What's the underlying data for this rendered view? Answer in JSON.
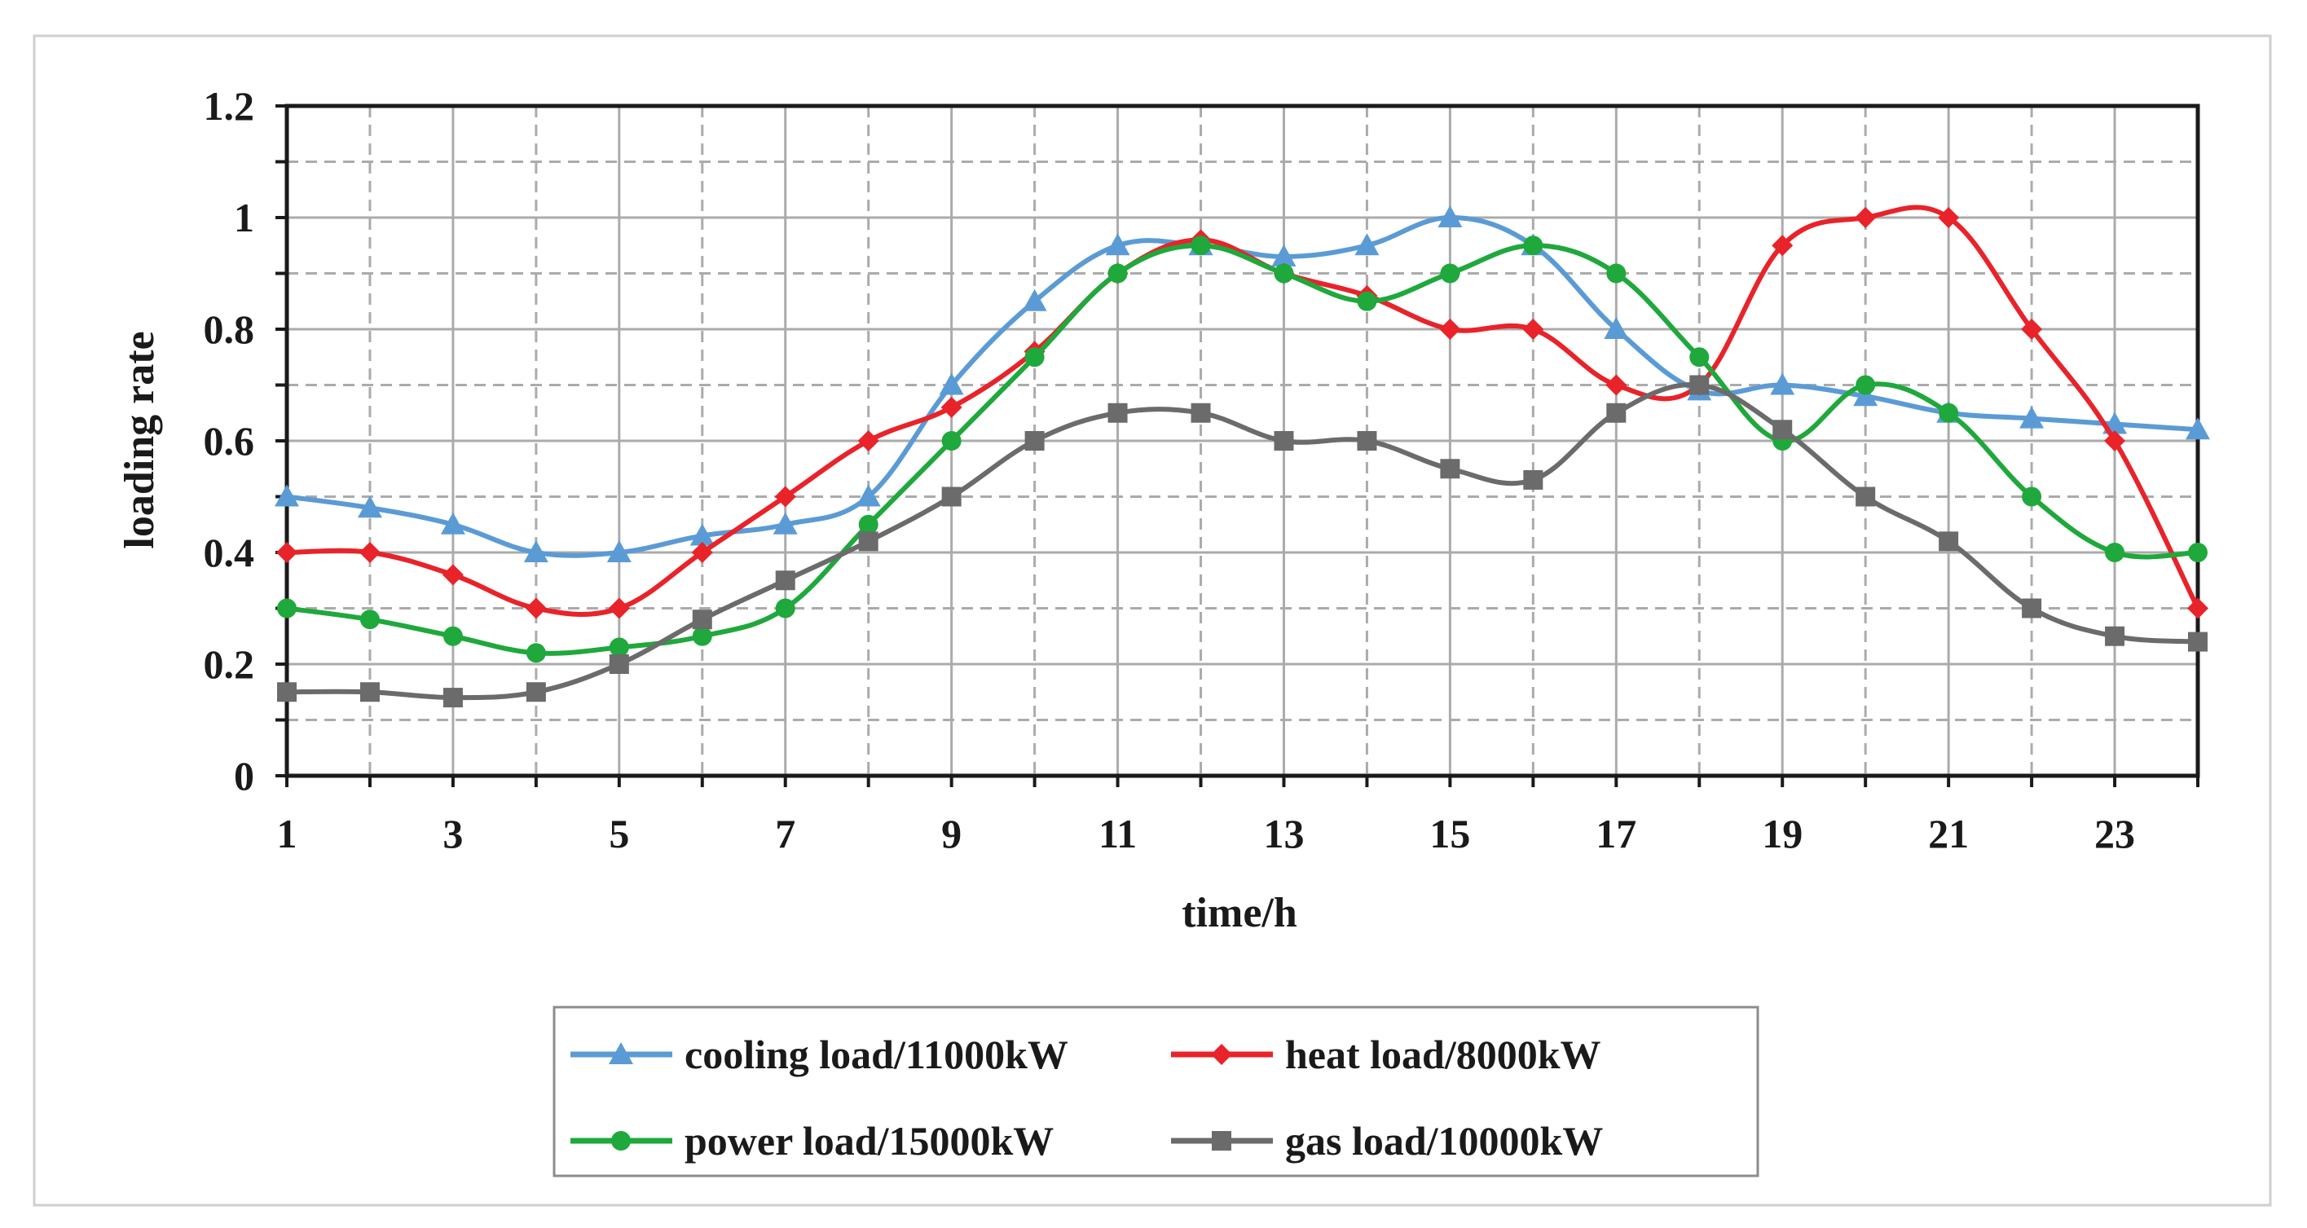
{
  "chart_data": {
    "type": "line",
    "title": "",
    "xlabel": "time/h",
    "ylabel": "loading rate",
    "x": [
      1,
      2,
      3,
      4,
      5,
      6,
      7,
      8,
      9,
      10,
      11,
      12,
      13,
      14,
      15,
      16,
      17,
      18,
      19,
      20,
      21,
      22,
      23,
      24
    ],
    "xlim": [
      1,
      24
    ],
    "ylim": [
      0,
      1.2
    ],
    "x_tick_labels": [
      "1",
      "3",
      "5",
      "7",
      "9",
      "11",
      "13",
      "15",
      "17",
      "19",
      "21",
      "23"
    ],
    "x_tick_values": [
      1,
      3,
      5,
      7,
      9,
      11,
      13,
      15,
      17,
      19,
      21,
      23
    ],
    "y_tick_labels": [
      "0",
      "0.2",
      "0.4",
      "0.6",
      "0.8",
      "1",
      "1.2"
    ],
    "y_tick_values": [
      0,
      0.2,
      0.4,
      0.6,
      0.8,
      1.0,
      1.2
    ],
    "grid": true,
    "legend_position": "bottom-center",
    "series": [
      {
        "name": "cooling load/11000kW",
        "color": "#5b9bd5",
        "marker": "triangle",
        "values": [
          0.5,
          0.48,
          0.45,
          0.4,
          0.4,
          0.43,
          0.45,
          0.5,
          0.7,
          0.85,
          0.95,
          0.95,
          0.93,
          0.95,
          1.0,
          0.95,
          0.8,
          0.69,
          0.7,
          0.68,
          0.65,
          0.64,
          0.63,
          0.62
        ]
      },
      {
        "name": "heat load/8000kW",
        "color": "#e8232a",
        "marker": "diamond",
        "values": [
          0.4,
          0.4,
          0.36,
          0.3,
          0.3,
          0.4,
          0.5,
          0.6,
          0.66,
          0.76,
          0.9,
          0.96,
          0.9,
          0.86,
          0.8,
          0.8,
          0.7,
          0.7,
          0.95,
          1.0,
          1.0,
          0.8,
          0.6,
          0.3
        ]
      },
      {
        "name": "power load/15000kW",
        "color": "#1fa83c",
        "marker": "circle",
        "values": [
          0.3,
          0.28,
          0.25,
          0.22,
          0.23,
          0.25,
          0.3,
          0.45,
          0.6,
          0.75,
          0.9,
          0.95,
          0.9,
          0.85,
          0.9,
          0.95,
          0.9,
          0.75,
          0.6,
          0.7,
          0.65,
          0.5,
          0.4,
          0.4
        ]
      },
      {
        "name": "gas load/10000kW",
        "color": "#6b6b6b",
        "marker": "square",
        "values": [
          0.15,
          0.15,
          0.14,
          0.15,
          0.2,
          0.28,
          0.35,
          0.42,
          0.5,
          0.6,
          0.65,
          0.65,
          0.6,
          0.6,
          0.55,
          0.53,
          0.65,
          0.7,
          0.62,
          0.5,
          0.42,
          0.3,
          0.25,
          0.24
        ]
      }
    ]
  }
}
